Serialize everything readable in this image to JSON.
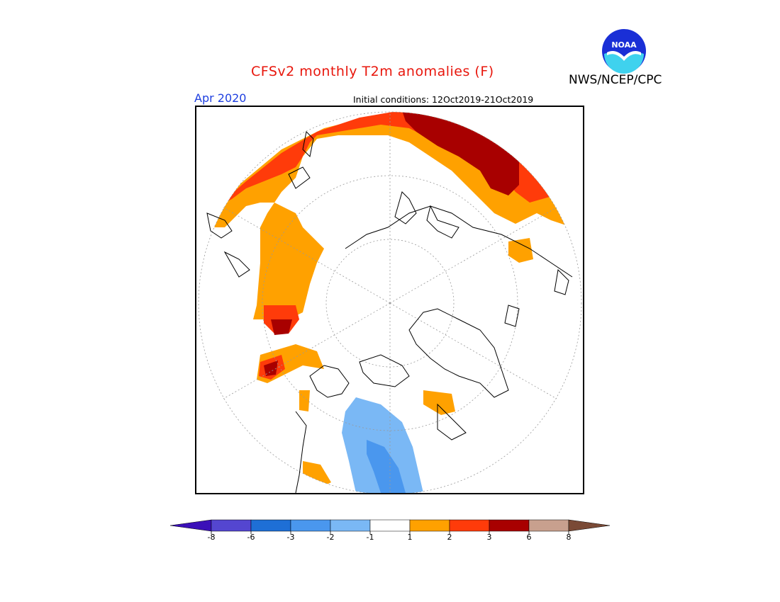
{
  "header": {
    "title": "CFSv2 monthly T2m anomalies (F)",
    "agency": "NWS/NCEP/CPC",
    "valid_month": "Apr 2020",
    "initial_conditions": "Initial conditions: 12Oct2019-21Oct2019",
    "logo_text": "NOAA"
  },
  "colors": {
    "title": "#e8160c",
    "month": "#1e3fe0",
    "anom_1_2": "#ffa100",
    "anom_2_3": "#ff3b0a",
    "anom_3_6": "#a80000",
    "anom_neg_1_2": "#7ab8f5",
    "anom_neg_2_3": "#4a97ee"
  },
  "legend": {
    "bins": [
      {
        "color": "#3b10b8"
      },
      {
        "color": "#5446d0"
      },
      {
        "color": "#1e6fd6"
      },
      {
        "color": "#4a97ee"
      },
      {
        "color": "#7ab8f5"
      },
      {
        "color": "#ffffff"
      },
      {
        "color": "#ffa100"
      },
      {
        "color": "#ff3b0a"
      },
      {
        "color": "#a80000"
      },
      {
        "color": "#c8a08e"
      },
      {
        "color": "#7a4a36"
      }
    ],
    "labels": [
      "-8",
      "-6",
      "-3",
      "-2",
      "-1",
      "1",
      "2",
      "3",
      "6",
      "8"
    ]
  }
}
